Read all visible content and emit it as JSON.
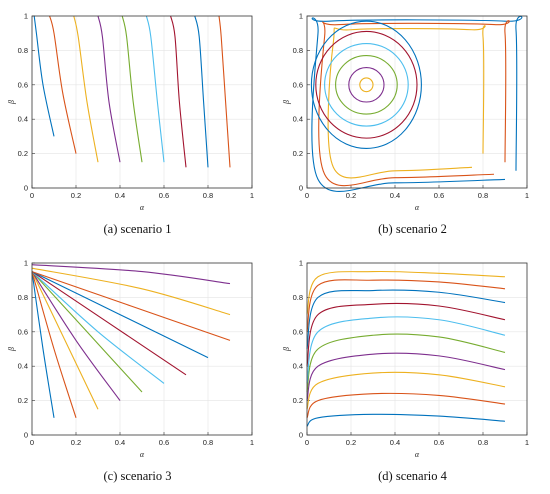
{
  "palette": [
    "#0072bd",
    "#d95319",
    "#edb120",
    "#7e2f8e",
    "#77ac30",
    "#4dbeee",
    "#a2142f"
  ],
  "panels": [
    {
      "caption": "(a) scenario 1",
      "chart_data": {
        "type": "line",
        "title": "",
        "xlabel": "α",
        "ylabel": "β",
        "xlim": [
          0,
          1
        ],
        "ylim": [
          0,
          1
        ],
        "xticks": [
          "0",
          "0.2",
          "0.4",
          "0.6",
          "0.8",
          "1"
        ],
        "yticks": [
          "0",
          "0.2",
          "0.4",
          "0.6",
          "0.8",
          "1"
        ],
        "grid": true,
        "series": [
          {
            "x": [
              0.1,
              0.05,
              0.02,
              0.01
            ],
            "y": [
              0.3,
              0.6,
              0.9,
              1.0
            ]
          },
          {
            "x": [
              0.2,
              0.14,
              0.1,
              0.08
            ],
            "y": [
              0.2,
              0.55,
              0.9,
              1.0
            ]
          },
          {
            "x": [
              0.3,
              0.25,
              0.21,
              0.19
            ],
            "y": [
              0.15,
              0.5,
              0.88,
              1.0
            ]
          },
          {
            "x": [
              0.4,
              0.35,
              0.32,
              0.3
            ],
            "y": [
              0.15,
              0.5,
              0.88,
              1.0
            ]
          },
          {
            "x": [
              0.5,
              0.46,
              0.43,
              0.41
            ],
            "y": [
              0.15,
              0.5,
              0.88,
              1.0
            ]
          },
          {
            "x": [
              0.6,
              0.57,
              0.54,
              0.52
            ],
            "y": [
              0.15,
              0.5,
              0.88,
              1.0
            ]
          },
          {
            "x": [
              0.7,
              0.67,
              0.65,
              0.63
            ],
            "y": [
              0.12,
              0.5,
              0.88,
              1.0
            ]
          },
          {
            "x": [
              0.8,
              0.78,
              0.76,
              0.74
            ],
            "y": [
              0.12,
              0.5,
              0.88,
              1.0
            ]
          },
          {
            "x": [
              0.9,
              0.88,
              0.86,
              0.85
            ],
            "y": [
              0.12,
              0.5,
              0.88,
              1.0
            ]
          }
        ]
      }
    },
    {
      "caption": "(b) scenario 2",
      "chart_data": {
        "type": "line",
        "title": "",
        "xlabel": "α",
        "ylabel": "β",
        "xlim": [
          0,
          1
        ],
        "ylim": [
          0,
          1
        ],
        "xticks": [
          "0",
          "0.2",
          "0.4",
          "0.6",
          "0.8",
          "1"
        ],
        "yticks": [
          "0",
          "0.2",
          "0.4",
          "0.6",
          "0.8",
          "1"
        ],
        "grid": true,
        "center": [
          0.27,
          0.6
        ],
        "orbits": [
          {
            "rx": 0.03,
            "ry": 0.04
          },
          {
            "rx": 0.08,
            "ry": 0.1
          },
          {
            "rx": 0.14,
            "ry": 0.17
          },
          {
            "rx": 0.19,
            "ry": 0.24
          },
          {
            "rx": 0.23,
            "ry": 0.31
          },
          {
            "rx": 0.25,
            "ry": 0.37
          }
        ],
        "series": [
          {
            "x": [
              0.95,
              0.95,
              0.9,
              0.1,
              0.05,
              0.05,
              0.4,
              0.9
            ],
            "y": [
              0.1,
              0.92,
              0.97,
              0.97,
              0.9,
              0.05,
              0.03,
              0.05
            ]
          },
          {
            "x": [
              0.9,
              0.9,
              0.85,
              0.15,
              0.08,
              0.08,
              0.4,
              0.85
            ],
            "y": [
              0.15,
              0.9,
              0.95,
              0.95,
              0.88,
              0.08,
              0.06,
              0.08
            ]
          },
          {
            "x": [
              0.8,
              0.8,
              0.75,
              0.2,
              0.12,
              0.12,
              0.4,
              0.75
            ],
            "y": [
              0.2,
              0.88,
              0.92,
              0.92,
              0.85,
              0.12,
              0.1,
              0.12
            ]
          }
        ]
      }
    },
    {
      "caption": "(c) scenario 3",
      "chart_data": {
        "type": "line",
        "title": "",
        "xlabel": "α",
        "ylabel": "β",
        "xlim": [
          0,
          1
        ],
        "ylim": [
          0,
          1
        ],
        "xticks": [
          "0",
          "0.2",
          "0.4",
          "0.6",
          "0.8",
          "1"
        ],
        "yticks": [
          "0",
          "0.2",
          "0.4",
          "0.6",
          "0.8",
          "1"
        ],
        "grid": true,
        "series": [
          {
            "x": [
              0.0,
              0.05,
              0.1
            ],
            "y": [
              0.95,
              0.5,
              0.1
            ]
          },
          {
            "x": [
              0.0,
              0.1,
              0.2
            ],
            "y": [
              0.95,
              0.5,
              0.1
            ]
          },
          {
            "x": [
              0.0,
              0.15,
              0.3
            ],
            "y": [
              0.95,
              0.55,
              0.15
            ]
          },
          {
            "x": [
              0.0,
              0.2,
              0.4
            ],
            "y": [
              0.95,
              0.55,
              0.2
            ]
          },
          {
            "x": [
              0.0,
              0.25,
              0.5
            ],
            "y": [
              0.95,
              0.6,
              0.25
            ]
          },
          {
            "x": [
              0.0,
              0.3,
              0.6
            ],
            "y": [
              0.95,
              0.6,
              0.3
            ]
          },
          {
            "x": [
              0.0,
              0.35,
              0.7
            ],
            "y": [
              0.95,
              0.65,
              0.35
            ]
          },
          {
            "x": [
              0.0,
              0.4,
              0.8
            ],
            "y": [
              0.95,
              0.7,
              0.45
            ]
          },
          {
            "x": [
              0.0,
              0.45,
              0.9
            ],
            "y": [
              0.95,
              0.75,
              0.55
            ]
          },
          {
            "x": [
              0.0,
              0.5,
              0.9
            ],
            "y": [
              0.97,
              0.85,
              0.7
            ]
          },
          {
            "x": [
              0.0,
              0.5,
              0.9
            ],
            "y": [
              0.99,
              0.95,
              0.88
            ]
          }
        ]
      }
    },
    {
      "caption": "(d) scenario 4",
      "chart_data": {
        "type": "line",
        "title": "",
        "xlabel": "α",
        "ylabel": "β",
        "xlim": [
          0,
          1
        ],
        "ylim": [
          0,
          1
        ],
        "xticks": [
          "0",
          "0.2",
          "0.4",
          "0.6",
          "0.8",
          "1"
        ],
        "yticks": [
          "0",
          "0.2",
          "0.4",
          "0.6",
          "0.8",
          "1"
        ],
        "grid": true,
        "series": [
          {
            "x": [
              0.0,
              0.05,
              0.3,
              0.6,
              0.9
            ],
            "y": [
              0.05,
              0.1,
              0.12,
              0.11,
              0.08
            ]
          },
          {
            "x": [
              0.0,
              0.05,
              0.3,
              0.6,
              0.9
            ],
            "y": [
              0.1,
              0.2,
              0.24,
              0.23,
              0.18
            ]
          },
          {
            "x": [
              0.0,
              0.05,
              0.3,
              0.6,
              0.9
            ],
            "y": [
              0.15,
              0.3,
              0.36,
              0.35,
              0.28
            ]
          },
          {
            "x": [
              0.0,
              0.05,
              0.3,
              0.6,
              0.9
            ],
            "y": [
              0.2,
              0.4,
              0.47,
              0.46,
              0.38
            ]
          },
          {
            "x": [
              0.0,
              0.05,
              0.3,
              0.6,
              0.9
            ],
            "y": [
              0.25,
              0.5,
              0.58,
              0.57,
              0.48
            ]
          },
          {
            "x": [
              0.0,
              0.05,
              0.3,
              0.6,
              0.9
            ],
            "y": [
              0.3,
              0.6,
              0.68,
              0.67,
              0.58
            ]
          },
          {
            "x": [
              0.0,
              0.05,
              0.3,
              0.6,
              0.9
            ],
            "y": [
              0.4,
              0.7,
              0.76,
              0.75,
              0.67
            ]
          },
          {
            "x": [
              0.0,
              0.05,
              0.3,
              0.6,
              0.9
            ],
            "y": [
              0.5,
              0.8,
              0.84,
              0.83,
              0.77
            ]
          },
          {
            "x": [
              0.0,
              0.05,
              0.3,
              0.6,
              0.9
            ],
            "y": [
              0.6,
              0.87,
              0.9,
              0.89,
              0.85
            ]
          },
          {
            "x": [
              0.0,
              0.05,
              0.3,
              0.6,
              0.9
            ],
            "y": [
              0.7,
              0.92,
              0.95,
              0.94,
              0.92
            ]
          }
        ]
      }
    }
  ]
}
